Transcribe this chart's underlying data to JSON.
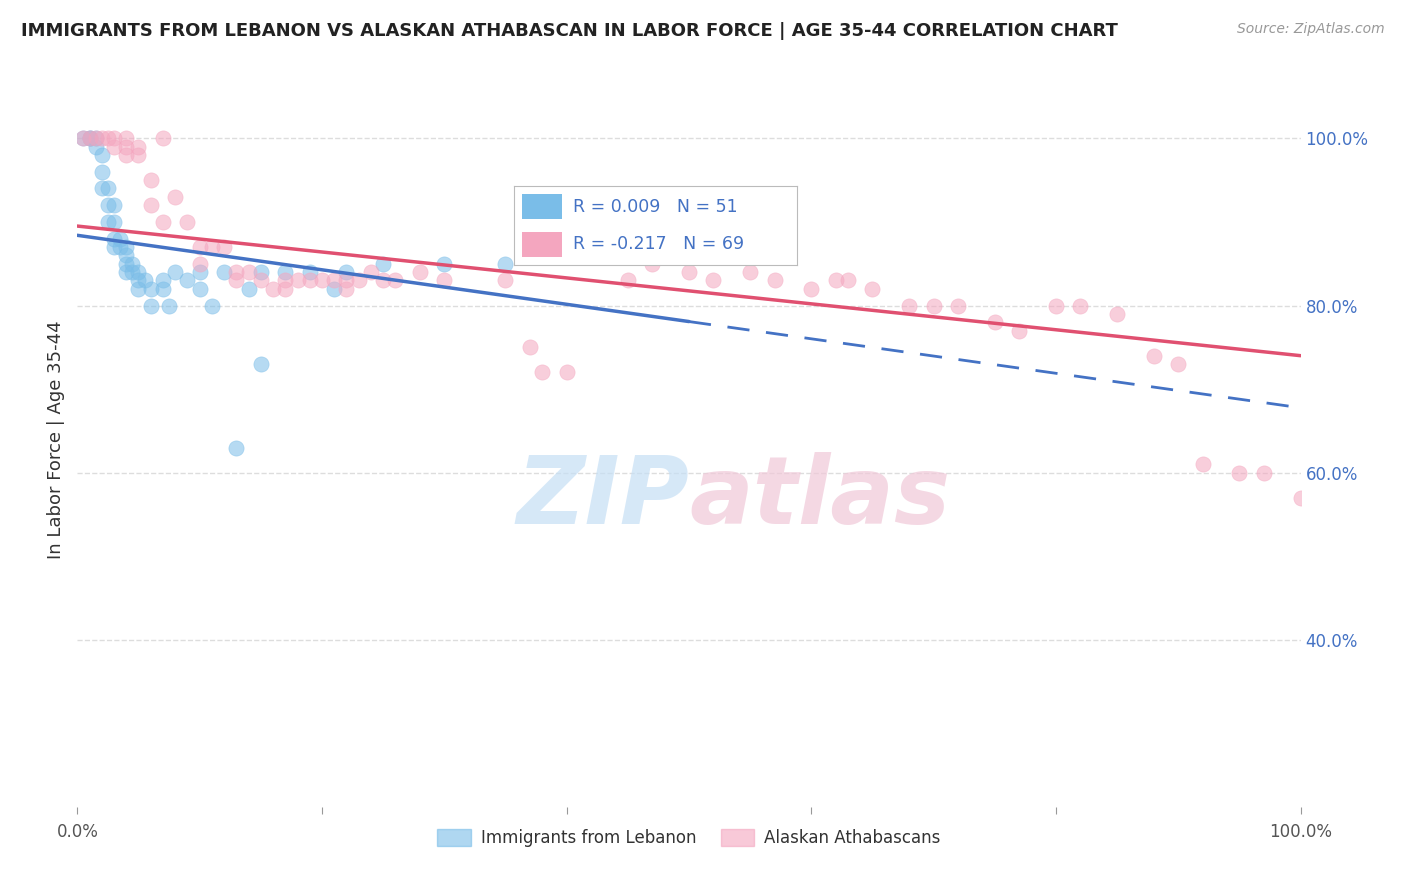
{
  "title": "IMMIGRANTS FROM LEBANON VS ALASKAN ATHABASCAN IN LABOR FORCE | AGE 35-44 CORRELATION CHART",
  "source": "Source: ZipAtlas.com",
  "ylabel": "In Labor Force | Age 35-44",
  "xlim": [
    0.0,
    1.0
  ],
  "ylim": [
    0.2,
    1.08
  ],
  "blue_label": "Immigrants from Lebanon",
  "pink_label": "Alaskan Athabascans",
  "blue_R": 0.009,
  "blue_N": 51,
  "pink_R": -0.217,
  "pink_N": 69,
  "blue_color": "#7abde8",
  "pink_color": "#f4a6bf",
  "blue_scatter": [
    [
      0.005,
      1.0
    ],
    [
      0.01,
      1.0
    ],
    [
      0.01,
      1.0
    ],
    [
      0.015,
      1.0
    ],
    [
      0.015,
      0.99
    ],
    [
      0.02,
      0.98
    ],
    [
      0.02,
      0.96
    ],
    [
      0.02,
      0.94
    ],
    [
      0.025,
      0.94
    ],
    [
      0.025,
      0.92
    ],
    [
      0.025,
      0.9
    ],
    [
      0.03,
      0.92
    ],
    [
      0.03,
      0.9
    ],
    [
      0.03,
      0.88
    ],
    [
      0.03,
      0.87
    ],
    [
      0.035,
      0.88
    ],
    [
      0.035,
      0.87
    ],
    [
      0.04,
      0.87
    ],
    [
      0.04,
      0.86
    ],
    [
      0.04,
      0.85
    ],
    [
      0.04,
      0.84
    ],
    [
      0.045,
      0.85
    ],
    [
      0.045,
      0.84
    ],
    [
      0.05,
      0.84
    ],
    [
      0.05,
      0.83
    ],
    [
      0.05,
      0.82
    ],
    [
      0.055,
      0.83
    ],
    [
      0.06,
      0.82
    ],
    [
      0.06,
      0.8
    ],
    [
      0.07,
      0.83
    ],
    [
      0.07,
      0.82
    ],
    [
      0.075,
      0.8
    ],
    [
      0.08,
      0.84
    ],
    [
      0.09,
      0.83
    ],
    [
      0.1,
      0.84
    ],
    [
      0.1,
      0.82
    ],
    [
      0.11,
      0.8
    ],
    [
      0.12,
      0.84
    ],
    [
      0.13,
      0.63
    ],
    [
      0.14,
      0.82
    ],
    [
      0.15,
      0.84
    ],
    [
      0.15,
      0.73
    ],
    [
      0.17,
      0.84
    ],
    [
      0.19,
      0.84
    ],
    [
      0.21,
      0.82
    ],
    [
      0.22,
      0.84
    ],
    [
      0.25,
      0.85
    ],
    [
      0.3,
      0.85
    ],
    [
      0.35,
      0.85
    ],
    [
      0.47,
      0.86
    ],
    [
      0.5,
      0.86
    ]
  ],
  "pink_scatter": [
    [
      0.005,
      1.0
    ],
    [
      0.01,
      1.0
    ],
    [
      0.015,
      1.0
    ],
    [
      0.02,
      1.0
    ],
    [
      0.025,
      1.0
    ],
    [
      0.03,
      1.0
    ],
    [
      0.03,
      0.99
    ],
    [
      0.04,
      1.0
    ],
    [
      0.04,
      0.99
    ],
    [
      0.04,
      0.98
    ],
    [
      0.05,
      0.99
    ],
    [
      0.05,
      0.98
    ],
    [
      0.06,
      0.95
    ],
    [
      0.06,
      0.92
    ],
    [
      0.07,
      0.9
    ],
    [
      0.07,
      1.0
    ],
    [
      0.08,
      0.93
    ],
    [
      0.09,
      0.9
    ],
    [
      0.1,
      0.87
    ],
    [
      0.1,
      0.85
    ],
    [
      0.11,
      0.87
    ],
    [
      0.12,
      0.87
    ],
    [
      0.13,
      0.84
    ],
    [
      0.13,
      0.83
    ],
    [
      0.14,
      0.84
    ],
    [
      0.15,
      0.83
    ],
    [
      0.16,
      0.82
    ],
    [
      0.17,
      0.83
    ],
    [
      0.17,
      0.82
    ],
    [
      0.18,
      0.83
    ],
    [
      0.19,
      0.83
    ],
    [
      0.2,
      0.83
    ],
    [
      0.21,
      0.83
    ],
    [
      0.22,
      0.82
    ],
    [
      0.22,
      0.83
    ],
    [
      0.23,
      0.83
    ],
    [
      0.24,
      0.84
    ],
    [
      0.25,
      0.83
    ],
    [
      0.26,
      0.83
    ],
    [
      0.28,
      0.84
    ],
    [
      0.3,
      0.83
    ],
    [
      0.35,
      0.83
    ],
    [
      0.37,
      0.75
    ],
    [
      0.38,
      0.72
    ],
    [
      0.4,
      0.72
    ],
    [
      0.45,
      0.83
    ],
    [
      0.47,
      0.85
    ],
    [
      0.5,
      0.84
    ],
    [
      0.52,
      0.83
    ],
    [
      0.55,
      0.84
    ],
    [
      0.57,
      0.83
    ],
    [
      0.6,
      0.82
    ],
    [
      0.62,
      0.83
    ],
    [
      0.63,
      0.83
    ],
    [
      0.65,
      0.82
    ],
    [
      0.68,
      0.8
    ],
    [
      0.7,
      0.8
    ],
    [
      0.72,
      0.8
    ],
    [
      0.75,
      0.78
    ],
    [
      0.77,
      0.77
    ],
    [
      0.8,
      0.8
    ],
    [
      0.82,
      0.8
    ],
    [
      0.85,
      0.79
    ],
    [
      0.88,
      0.74
    ],
    [
      0.9,
      0.73
    ],
    [
      0.92,
      0.61
    ],
    [
      0.95,
      0.6
    ],
    [
      0.97,
      0.6
    ],
    [
      1.0,
      0.57
    ]
  ],
  "yticks": [
    0.4,
    0.6,
    0.8,
    1.0
  ],
  "ytick_labels": [
    "40.0%",
    "60.0%",
    "80.0%",
    "100.0%"
  ],
  "xticks": [
    0.0,
    0.2,
    0.4,
    0.6,
    0.8,
    1.0
  ],
  "xtick_labels": [
    "0.0%",
    "",
    "",
    "",
    "",
    "100.0%"
  ],
  "watermark_zip": "ZIP",
  "watermark_atlas": "atlas",
  "background_color": "#ffffff",
  "grid_color": "#dddddd",
  "blue_line_end_solid": 0.5,
  "pink_line_intercept": 0.895,
  "pink_line_slope": -0.155
}
